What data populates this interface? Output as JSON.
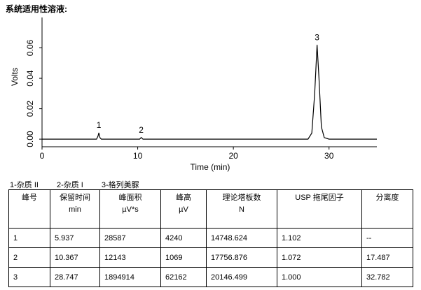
{
  "title": "系统适用性溶液:",
  "chart_data": {
    "type": "line",
    "xlabel": "Time (min)",
    "ylabel": "Volts",
    "xlim": [
      0,
      35
    ],
    "xticks": [
      0,
      10,
      20,
      30
    ],
    "ylim": [
      -0.005,
      0.08
    ],
    "yticks": [
      {
        "value": 0,
        "label": "0.00"
      },
      {
        "value": 0.02,
        "label": "0.02"
      },
      {
        "value": 0.04,
        "label": "0.04"
      },
      {
        "value": 0.06,
        "label": "0.06"
      }
    ],
    "series": [
      {
        "name": "trace",
        "color": "#000000",
        "x": [
          0,
          5.7,
          5.85,
          5.94,
          6.05,
          6.2,
          10.2,
          10.37,
          10.55,
          27.8,
          28.2,
          28.5,
          28.75,
          28.95,
          29.2,
          29.5,
          30,
          35
        ],
        "values": [
          0,
          0,
          0.002,
          0.0042,
          0.001,
          0,
          0,
          0.0011,
          0,
          0,
          0.004,
          0.03,
          0.062,
          0.04,
          0.008,
          0.001,
          0,
          0
        ]
      }
    ],
    "annotations": [
      {
        "text": "1",
        "x": 5.94,
        "y": 0.0042
      },
      {
        "text": "2",
        "x": 10.37,
        "y": 0.0011
      },
      {
        "text": "3",
        "x": 28.75,
        "y": 0.062
      }
    ]
  },
  "legend": [
    "1-杂质 II",
    "2-杂质 I",
    "3-格列美脲"
  ],
  "table": {
    "header": [
      [
        "峰号",
        ""
      ],
      [
        "保留时间",
        "min"
      ],
      [
        "峰面积",
        "µV*s"
      ],
      [
        "峰高",
        "µV"
      ],
      [
        "理论塔板数",
        "N"
      ],
      [
        "USP 拖尾因子",
        ""
      ],
      [
        "分离度",
        ""
      ]
    ],
    "rows": [
      [
        "1",
        "5.937",
        "28587",
        "4240",
        "14748.624",
        "1.102",
        "--"
      ],
      [
        "2",
        "10.367",
        "12143",
        "1069",
        "17756.876",
        "1.072",
        "17.487"
      ],
      [
        "3",
        "28.747",
        "1894914",
        "62162",
        "20146.499",
        "1.000",
        "32.782"
      ]
    ]
  }
}
